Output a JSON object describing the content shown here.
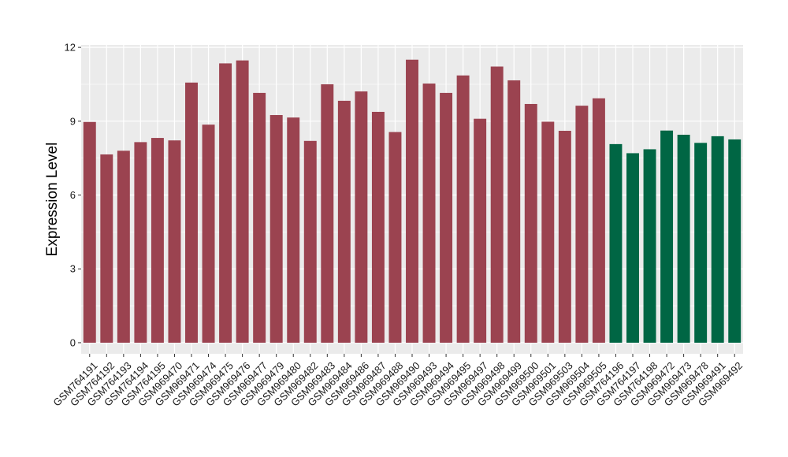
{
  "chart_data": {
    "type": "bar",
    "title": "",
    "xlabel": "",
    "ylabel": "Expression Level",
    "ylim": [
      -0.45,
      12.1
    ],
    "yticks": [
      0,
      3,
      6,
      9,
      12
    ],
    "grid": true,
    "legend": "none",
    "colors": {
      "group_a": "#9b4350",
      "group_b": "#006644",
      "panel_background": "#ebebeb",
      "grid": "#ffffff"
    },
    "categories": [
      "GSM764191",
      "GSM764192",
      "GSM764193",
      "GSM764194",
      "GSM764195",
      "GSM969470",
      "GSM969471",
      "GSM969474",
      "GSM969475",
      "GSM969476",
      "GSM969477",
      "GSM969479",
      "GSM969480",
      "GSM969482",
      "GSM969483",
      "GSM969484",
      "GSM969486",
      "GSM969487",
      "GSM969488",
      "GSM969490",
      "GSM969493",
      "GSM969494",
      "GSM969495",
      "GSM969497",
      "GSM969498",
      "GSM969499",
      "GSM969500",
      "GSM969501",
      "GSM969503",
      "GSM969504",
      "GSM969505",
      "GSM764196",
      "GSM764197",
      "GSM764198",
      "GSM969472",
      "GSM969473",
      "GSM969478",
      "GSM969491",
      "GSM969492"
    ],
    "values": [
      8.97,
      7.65,
      7.8,
      8.15,
      8.32,
      8.22,
      10.57,
      8.86,
      11.35,
      11.47,
      10.15,
      9.25,
      9.15,
      8.2,
      10.5,
      9.83,
      10.21,
      9.38,
      8.56,
      11.5,
      10.53,
      10.15,
      10.86,
      9.1,
      11.22,
      10.66,
      9.7,
      8.98,
      8.61,
      9.63,
      9.93,
      8.07,
      7.7,
      7.86,
      8.62,
      8.45,
      8.12,
      8.39,
      8.26
    ],
    "groups": [
      "a",
      "a",
      "a",
      "a",
      "a",
      "a",
      "a",
      "a",
      "a",
      "a",
      "a",
      "a",
      "a",
      "a",
      "a",
      "a",
      "a",
      "a",
      "a",
      "a",
      "a",
      "a",
      "a",
      "a",
      "a",
      "a",
      "a",
      "a",
      "a",
      "a",
      "a",
      "b",
      "b",
      "b",
      "b",
      "b",
      "b",
      "b",
      "b"
    ]
  }
}
